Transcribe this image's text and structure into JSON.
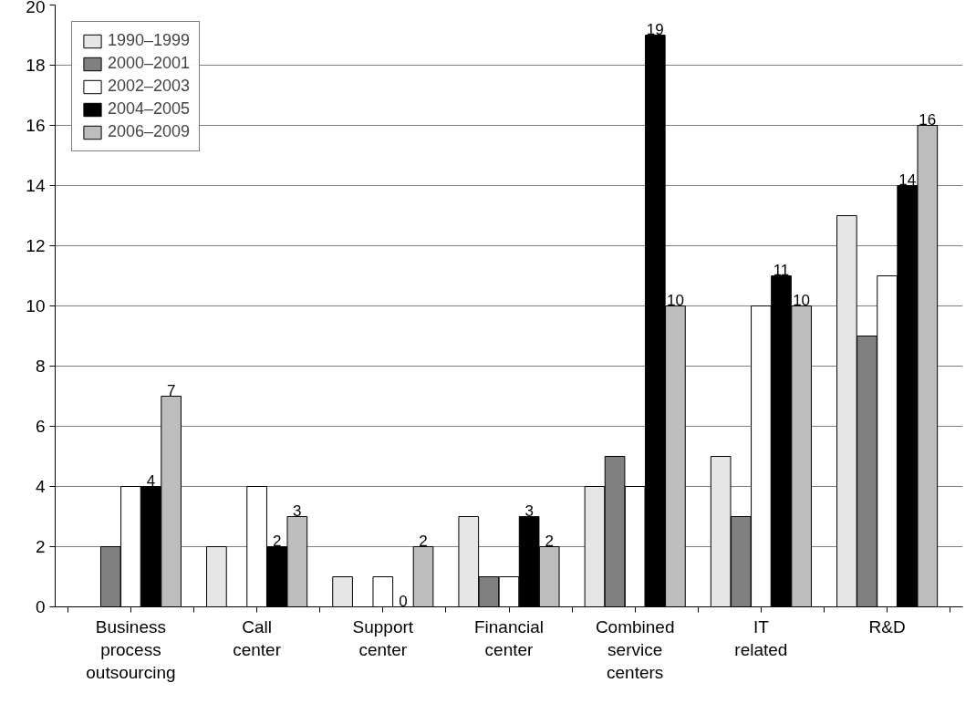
{
  "chart_data": {
    "type": "bar",
    "categories": [
      "Business process outsourcing",
      "Call center",
      "Support center",
      "Financial center",
      "Combined service centers",
      "IT related",
      "R&D"
    ],
    "series": [
      {
        "name": "1990–1999",
        "color": "#e6e6e6",
        "values": [
          null,
          2,
          1,
          3,
          4,
          5,
          13
        ]
      },
      {
        "name": "2000–2001",
        "color": "#808080",
        "values": [
          2,
          null,
          null,
          1,
          5,
          3,
          9
        ]
      },
      {
        "name": "2002–2003",
        "color": "#ffffff",
        "values": [
          4,
          4,
          1,
          1,
          4,
          10,
          11
        ]
      },
      {
        "name": "2004–2005",
        "color": "#000000",
        "values": [
          4,
          2,
          0,
          3,
          19,
          11,
          14
        ],
        "value_labels": [
          "4",
          "2",
          "0",
          "3",
          "19",
          "11",
          "14"
        ]
      },
      {
        "name": "2006–2009",
        "color": "#bdbdbd",
        "values": [
          7,
          3,
          2,
          2,
          10,
          10,
          16
        ],
        "value_labels": [
          "7",
          "3",
          "2",
          "2",
          "10",
          "10",
          "16"
        ]
      }
    ],
    "ylim": [
      0,
      20
    ],
    "yticks": [
      0,
      2,
      4,
      6,
      8,
      10,
      12,
      14,
      16,
      18,
      20
    ],
    "grid": "y",
    "legend": "top left"
  }
}
